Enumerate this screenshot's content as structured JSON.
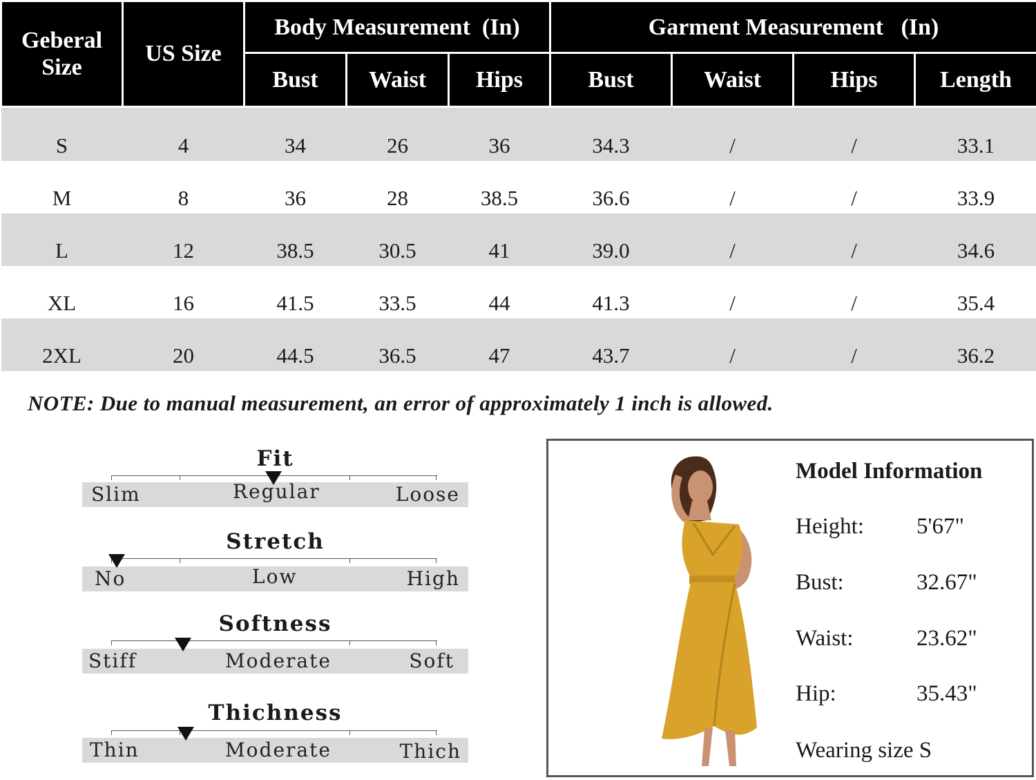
{
  "table": {
    "headers": {
      "general_size": "Geberal Size",
      "us_size": "US Size",
      "body_group": "Body Measurement  (In)",
      "garment_group": "Garment Measurement   (In)",
      "body_cols": [
        "Bust",
        "Waist",
        "Hips"
      ],
      "garment_cols": [
        "Bust",
        "Waist",
        "Hips",
        "Length"
      ]
    },
    "rows": [
      [
        "S",
        "4",
        "34",
        "26",
        "36",
        "34.3",
        "/",
        "/",
        "33.1"
      ],
      [
        "M",
        "8",
        "36",
        "28",
        "38.5",
        "36.6",
        "/",
        "/",
        "33.9"
      ],
      [
        "L",
        "12",
        "38.5",
        "30.5",
        "41",
        "39.0",
        "/",
        "/",
        "34.6"
      ],
      [
        "XL",
        "16",
        "41.5",
        "33.5",
        "44",
        "41.3",
        "/",
        "/",
        "35.4"
      ],
      [
        "2XL",
        "20",
        "44.5",
        "36.5",
        "47",
        "43.7",
        "/",
        "/",
        "36.2"
      ]
    ]
  },
  "note": "NOTE: Due to manual measurement, an error of approximately 1 inch is allowed.",
  "scales": [
    {
      "title": "Fit",
      "labels": [
        "Slim",
        "Regular",
        "Loose"
      ],
      "selected_index": 1
    },
    {
      "title": "Stretch",
      "labels": [
        "No",
        "Low",
        "High"
      ],
      "selected_index": 0
    },
    {
      "title": "Softness",
      "labels": [
        "Stiff",
        "Moderate",
        "Soft"
      ],
      "selected_index": 0.5
    },
    {
      "title": "Thichness",
      "labels": [
        "Thin",
        "Moderate",
        "Thich"
      ],
      "selected_index": 0.5
    }
  ],
  "model": {
    "title": "Model Information",
    "items": [
      {
        "label": "Height:",
        "value": "5'67\""
      },
      {
        "label": "Bust:",
        "value": "32.67\""
      },
      {
        "label": "Waist:",
        "value": "23.62\""
      },
      {
        "label": "Hip:",
        "value": "35.43\""
      }
    ],
    "wearing": "Wearing size S",
    "dress_color": "#d9a22b"
  }
}
